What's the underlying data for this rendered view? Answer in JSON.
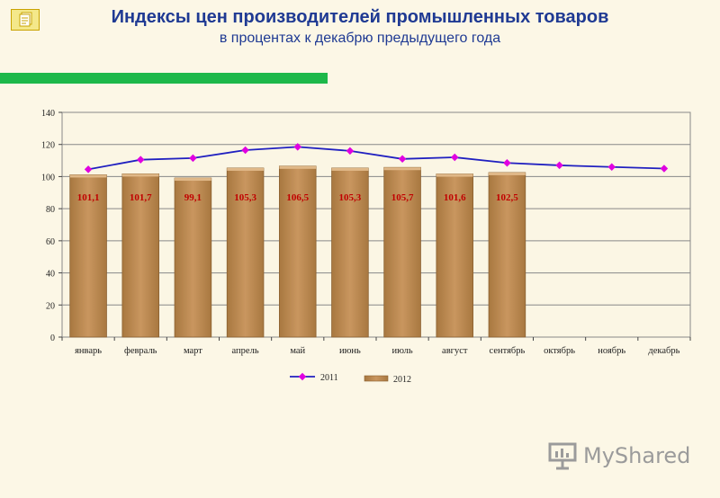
{
  "header": {
    "title": "Индексы цен производителей промышленных товаров",
    "subtitle": "в процентах к декабрю предыдущего года"
  },
  "watermark": {
    "text": "MyShared"
  },
  "icons": {
    "corner": "document-stack-icon",
    "watermark": "presentation-board-icon"
  },
  "colors": {
    "title": "#1f3a93",
    "bar": "#c9965f",
    "line": "#2020c0",
    "marker": "#e000e0",
    "label": "#c00000",
    "accent_bar": "#1db84a"
  },
  "chart_data": {
    "type": "bar",
    "categories": [
      "январь",
      "февраль",
      "март",
      "апрель",
      "май",
      "июнь",
      "июль",
      "август",
      "сентябрь",
      "октябрь",
      "ноябрь",
      "декабрь"
    ],
    "series": [
      {
        "name": "2012",
        "type": "bar",
        "values": [
          101.1,
          101.7,
          99.1,
          105.3,
          106.5,
          105.3,
          105.7,
          101.6,
          102.5,
          null,
          null,
          null
        ],
        "labels": [
          "101,1",
          "101,7",
          "99,1",
          "105,3",
          "106,5",
          "105,3",
          "105,7",
          "101,6",
          "102,5",
          null,
          null,
          null
        ]
      },
      {
        "name": "2011",
        "type": "line",
        "values": [
          104.5,
          110.5,
          111.5,
          116.5,
          118.5,
          116,
          111,
          112,
          108.5,
          107,
          106,
          105
        ]
      }
    ],
    "ylim": [
      0,
      140
    ],
    "yticks": [
      0,
      20,
      40,
      60,
      80,
      100,
      120,
      140
    ],
    "grid": true,
    "legend": "bottom"
  }
}
